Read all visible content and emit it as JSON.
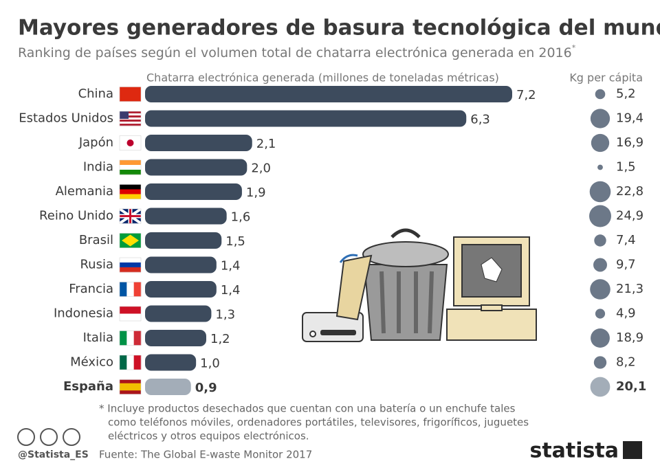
{
  "chart_data": {
    "type": "bar",
    "title": "Mayores generadores de basura tecnológica del mundo",
    "subtitle": "Ranking de países según el volumen total de chatarra electrónica generada en 2016",
    "subtitle_mark": "*",
    "categories": [
      "China",
      "Estados Unidos",
      "Japón",
      "India",
      "Alemania",
      "Reino Unido",
      "Brasil",
      "Rusia",
      "Francia",
      "Indonesia",
      "Italia",
      "México",
      "España"
    ],
    "highlight": "España",
    "series": [
      {
        "name": "Chatarra electrónica generada (millones de toneladas métricas)",
        "color": "#3d4b5d",
        "highlight_color": "#a3adb8",
        "values": [
          7.2,
          6.3,
          2.1,
          2.0,
          1.9,
          1.6,
          1.5,
          1.4,
          1.4,
          1.3,
          1.2,
          1.0,
          0.9
        ],
        "value_labels": [
          "7,2",
          "6,3",
          "2,1",
          "2,0",
          "1,9",
          "1,6",
          "1,5",
          "1,4",
          "1,4",
          "1,3",
          "1,2",
          "1,0",
          "0,9"
        ]
      },
      {
        "name": "Kg per cápita",
        "color": "#6c7888",
        "highlight_color": "#a3adb8",
        "values": [
          5.2,
          19.4,
          16.9,
          1.5,
          22.8,
          24.9,
          7.4,
          9.7,
          21.3,
          4.9,
          18.9,
          8.2,
          20.1
        ],
        "value_labels": [
          "5,2",
          "19,4",
          "16,9",
          "1,5",
          "22,8",
          "24,9",
          "7,4",
          "9,7",
          "21,3",
          "4,9",
          "18,9",
          "8,2",
          "20,1"
        ]
      }
    ],
    "footnote": [
      "* Incluye productos desechados que cuentan con una batería o un enchufe tales",
      "como teléfonos móviles, ordenadores portátiles, televisores, frigoríficos, juguetes",
      "eléctricos y otros equipos electrónicos."
    ],
    "source": "Fuente: The Global E-waste Monitor 2017",
    "credit": "@Statista_ES",
    "logo": "statista"
  }
}
